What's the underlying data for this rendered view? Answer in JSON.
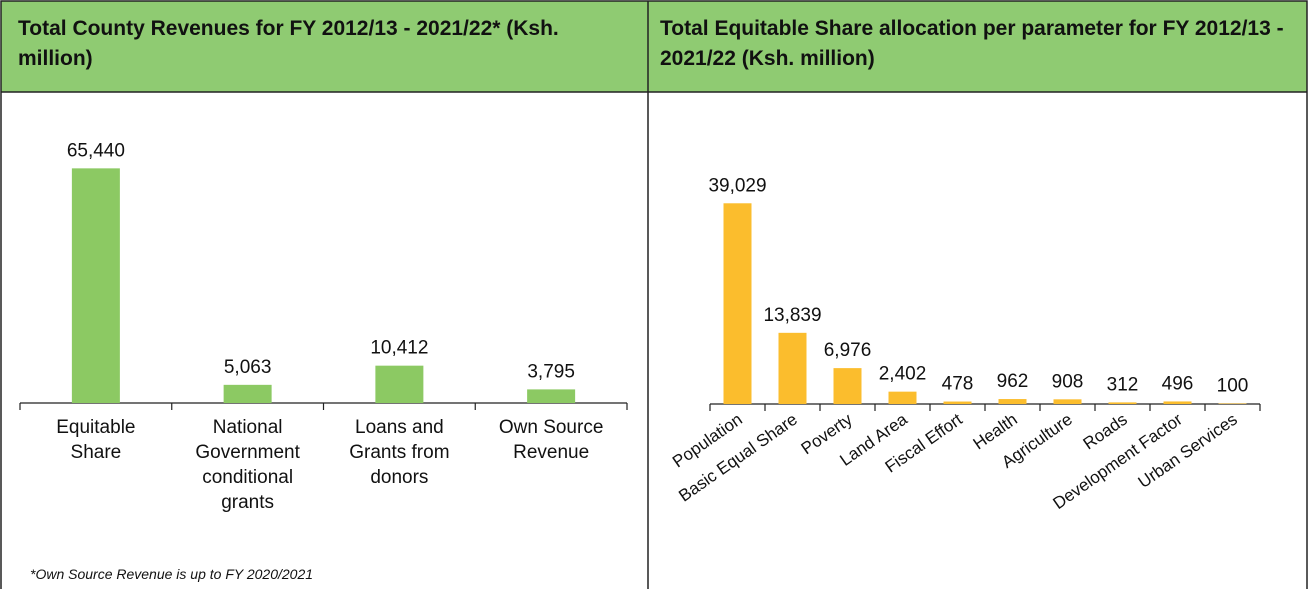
{
  "chart_data": [
    {
      "type": "bar",
      "title": "Total County Revenues for FY 2012/13 - 2021/22* (Ksh. million)",
      "categories": [
        "Equitable Share",
        "National Government conditional grants",
        "Loans and Grants from donors",
        "Own Source Revenue"
      ],
      "values": [
        65440,
        5063,
        10412,
        3795
      ],
      "value_labels": [
        "65,440",
        "5,063",
        "10,412",
        "3,795"
      ],
      "color": "#8cc963",
      "ylim": [
        0,
        70000
      ],
      "footnote": "*Own Source Revenue is up to FY 2020/2021"
    },
    {
      "type": "bar",
      "title": "Total Equitable Share allocation per parameter for FY 2012/13 - 2021/22 (Ksh. million)",
      "categories": [
        "Population",
        "Basic Equal Share",
        "Poverty",
        "Land Area",
        "Fiscal Effort",
        "Health",
        "Agriculture",
        "Roads",
        "Development Factor",
        "Urban Services"
      ],
      "values": [
        39029,
        13839,
        6976,
        2402,
        478,
        962,
        908,
        312,
        496,
        100
      ],
      "value_labels": [
        "39,029",
        "13,839",
        "6,976",
        "2,402",
        "478",
        "962",
        "908",
        "312",
        "496",
        "100"
      ],
      "color": "#fbbd2d",
      "ylim": [
        0,
        42000
      ]
    }
  ]
}
